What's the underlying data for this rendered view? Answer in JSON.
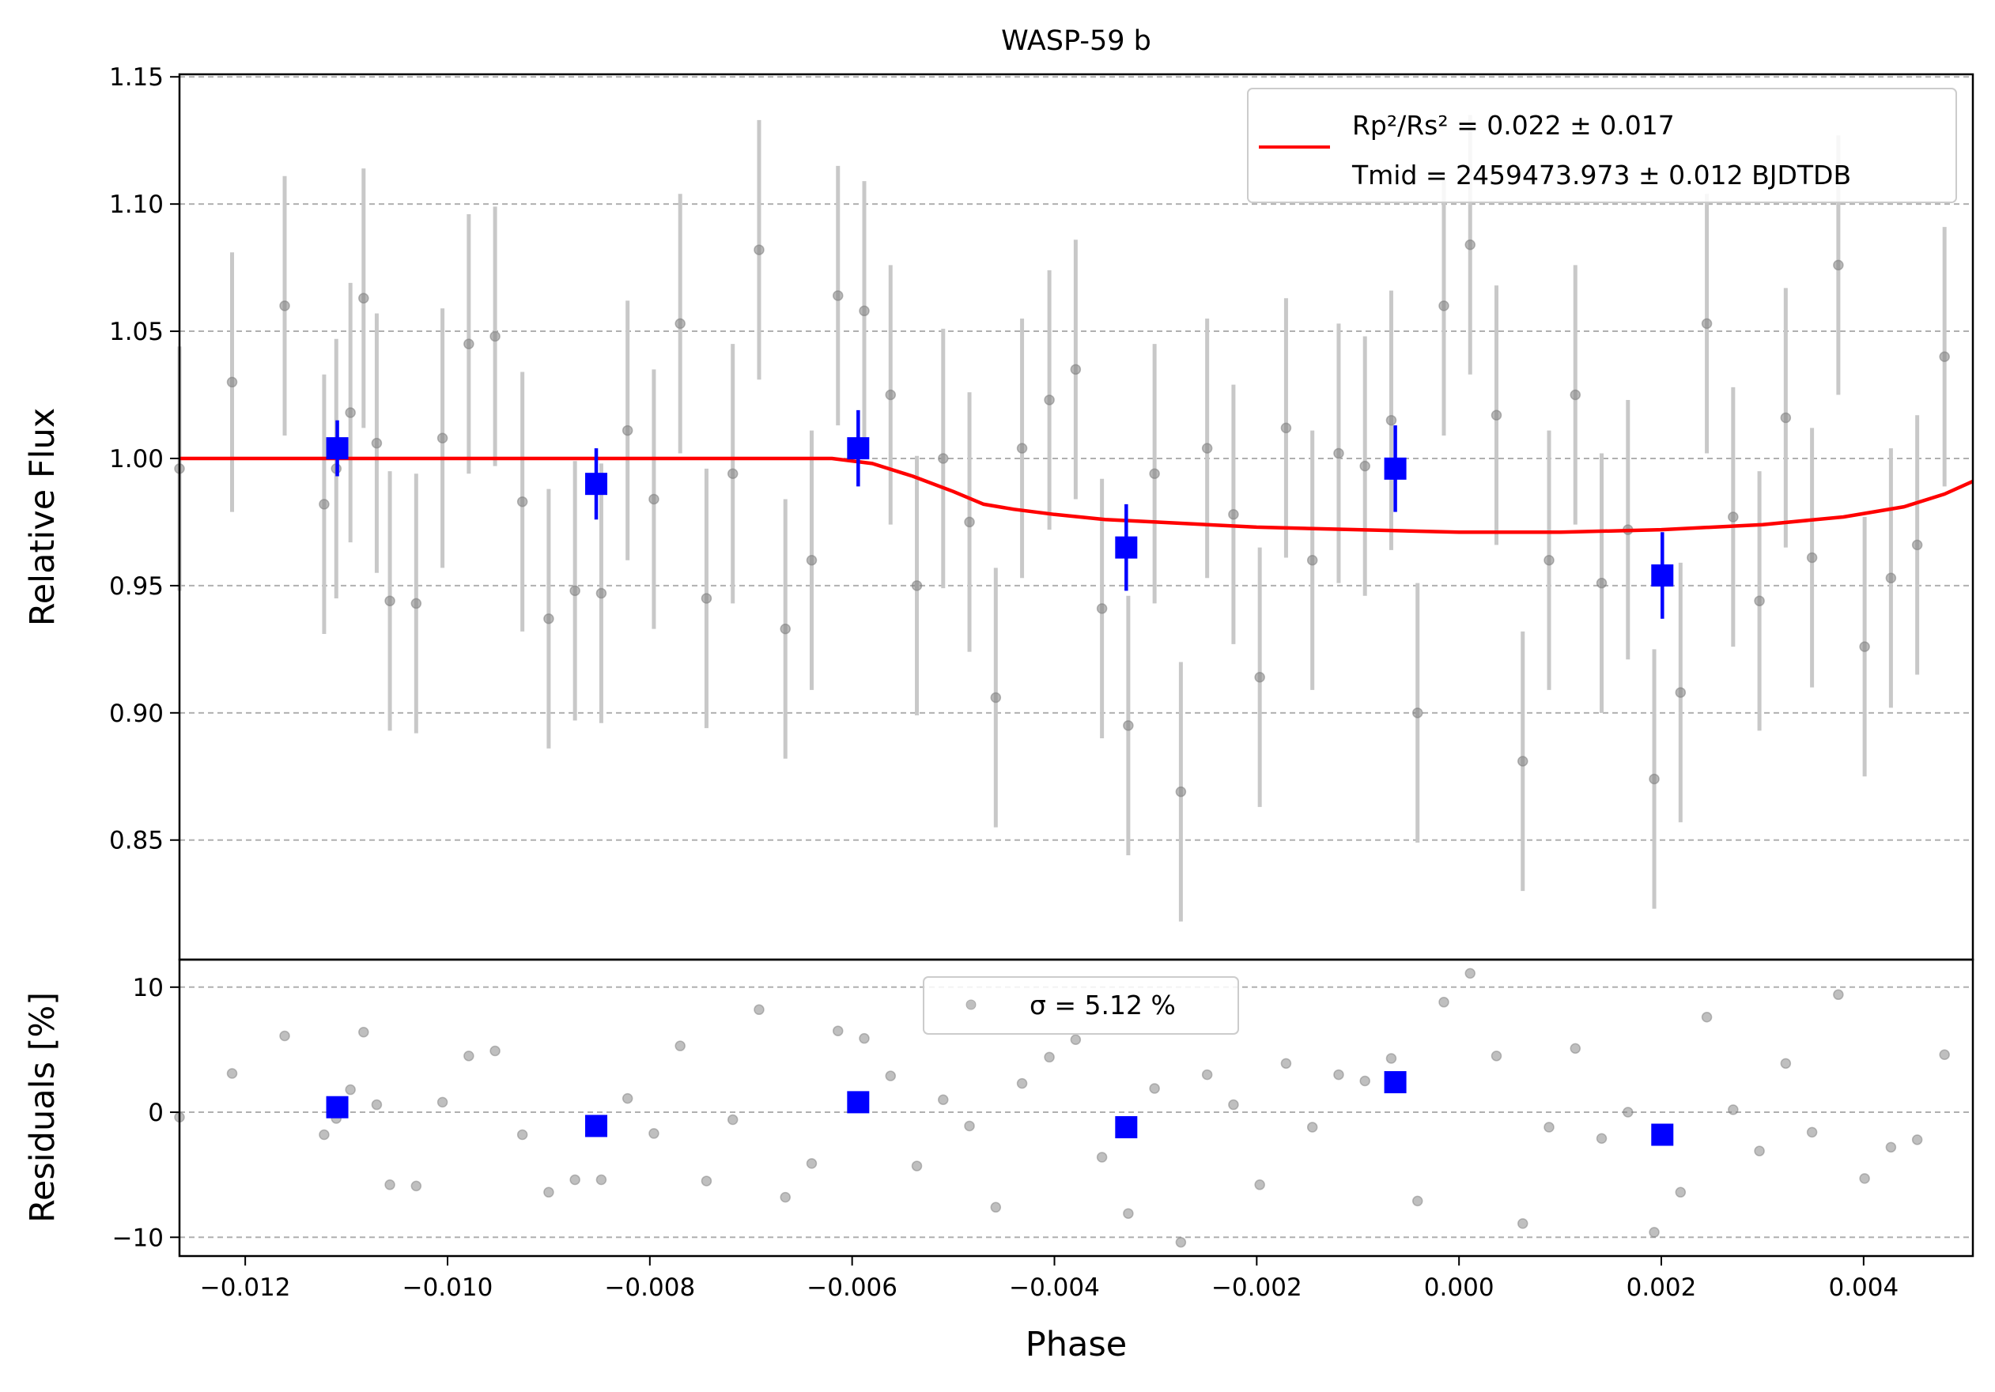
{
  "colors": {
    "raw": "#808080",
    "raw_err": "#c8c8c8",
    "binned": "#0000ff",
    "model": "#ff0000",
    "grid": "#b0b0b0"
  },
  "chart_data": {
    "type": "scatter",
    "title": "WASP-59 b",
    "xlabel": "Phase",
    "ylabel_top": "Relative Flux",
    "ylabel_bottom": "Residuals [%]",
    "xlim": [
      -0.01265,
      0.00508
    ],
    "ylim_top": [
      0.803,
      1.151
    ],
    "ylim_bottom": [
      -11.5,
      12.2
    ],
    "xticks": [
      -0.012,
      -0.01,
      -0.008,
      -0.006,
      -0.004,
      -0.002,
      0.0,
      0.002,
      0.004
    ],
    "xtick_labels": [
      "−0.012",
      "−0.010",
      "−0.008",
      "−0.006",
      "−0.004",
      "−0.002",
      "0.000",
      "0.002",
      "0.004"
    ],
    "yticks_top": [
      0.85,
      0.9,
      0.95,
      1.0,
      1.05,
      1.1,
      1.15
    ],
    "ytick_labels_top": [
      "0.85",
      "0.90",
      "0.95",
      "1.00",
      "1.05",
      "1.10",
      "1.15"
    ],
    "yticks_bottom": [
      -10,
      0,
      10
    ],
    "ytick_labels_bottom": [
      "−10",
      "0",
      "10"
    ],
    "grid": true,
    "legend_top": {
      "placement": "top-right",
      "line1": "Rp²/Rs² = 0.022 ± 0.017",
      "line2": "Tmid = 2459473.973 ± 0.012 BJDTDB"
    },
    "legend_bottom": {
      "placement": "top-center",
      "label": "σ = 5.12 %"
    },
    "raw_points": [
      {
        "x": -0.01265,
        "y": 0.996,
        "err": 0.048,
        "res": -0.4
      },
      {
        "x": -0.01213,
        "y": 1.03,
        "err": 0.051,
        "res": 3.1
      },
      {
        "x": -0.01161,
        "y": 1.06,
        "err": 0.051,
        "res": 6.1
      },
      {
        "x": -0.01122,
        "y": 0.982,
        "err": 0.051,
        "res": -1.8
      },
      {
        "x": -0.0111,
        "y": 0.996,
        "err": 0.051,
        "res": -0.5
      },
      {
        "x": -0.01096,
        "y": 1.018,
        "err": 0.051,
        "res": 1.8
      },
      {
        "x": -0.01083,
        "y": 1.063,
        "err": 0.051,
        "res": 6.4
      },
      {
        "x": -0.0107,
        "y": 1.006,
        "err": 0.051,
        "res": 0.6
      },
      {
        "x": -0.01057,
        "y": 0.944,
        "err": 0.051,
        "res": -5.8
      },
      {
        "x": -0.01031,
        "y": 0.943,
        "err": 0.051,
        "res": -5.9
      },
      {
        "x": -0.01005,
        "y": 1.008,
        "err": 0.051,
        "res": 0.8
      },
      {
        "x": -0.00979,
        "y": 1.045,
        "err": 0.051,
        "res": 4.5
      },
      {
        "x": -0.00953,
        "y": 1.048,
        "err": 0.051,
        "res": 4.9
      },
      {
        "x": -0.00926,
        "y": 0.983,
        "err": 0.051,
        "res": -1.8
      },
      {
        "x": -0.009,
        "y": 0.937,
        "err": 0.051,
        "res": -6.4
      },
      {
        "x": -0.00874,
        "y": 0.948,
        "err": 0.051,
        "res": -5.4
      },
      {
        "x": -0.00848,
        "y": 0.947,
        "err": 0.051,
        "res": -5.4
      },
      {
        "x": -0.00822,
        "y": 1.011,
        "err": 0.051,
        "res": 1.1
      },
      {
        "x": -0.00796,
        "y": 0.984,
        "err": 0.051,
        "res": -1.7
      },
      {
        "x": -0.0077,
        "y": 1.053,
        "err": 0.051,
        "res": 5.3
      },
      {
        "x": -0.00744,
        "y": 0.945,
        "err": 0.051,
        "res": -5.5
      },
      {
        "x": -0.00718,
        "y": 0.994,
        "err": 0.051,
        "res": -0.6
      },
      {
        "x": -0.00692,
        "y": 1.082,
        "err": 0.051,
        "res": 8.2
      },
      {
        "x": -0.00666,
        "y": 0.933,
        "err": 0.051,
        "res": -6.8
      },
      {
        "x": -0.0064,
        "y": 0.96,
        "err": 0.051,
        "res": -4.1
      },
      {
        "x": -0.00614,
        "y": 1.064,
        "err": 0.051,
        "res": 6.5
      },
      {
        "x": -0.00588,
        "y": 1.058,
        "err": 0.051,
        "res": 5.9
      },
      {
        "x": -0.00562,
        "y": 1.025,
        "err": 0.051,
        "res": 2.9
      },
      {
        "x": -0.00536,
        "y": 0.95,
        "err": 0.051,
        "res": -4.3
      },
      {
        "x": -0.0051,
        "y": 1.0,
        "err": 0.051,
        "res": 1.0
      },
      {
        "x": -0.00484,
        "y": 0.975,
        "err": 0.051,
        "res": -1.1
      },
      {
        "x": -0.00458,
        "y": 0.906,
        "err": 0.051,
        "res": -7.6
      },
      {
        "x": -0.00432,
        "y": 1.004,
        "err": 0.051,
        "res": 2.3
      },
      {
        "x": -0.00405,
        "y": 1.023,
        "err": 0.051,
        "res": 4.4
      },
      {
        "x": -0.00379,
        "y": 1.035,
        "err": 0.051,
        "res": 5.8
      },
      {
        "x": -0.00353,
        "y": 0.941,
        "err": 0.051,
        "res": -3.6
      },
      {
        "x": -0.00327,
        "y": 0.895,
        "err": 0.051,
        "res": -8.1
      },
      {
        "x": -0.00301,
        "y": 0.994,
        "err": 0.051,
        "res": 1.9
      },
      {
        "x": -0.00275,
        "y": 0.869,
        "err": 0.051,
        "res": -10.4
      },
      {
        "x": -0.00249,
        "y": 1.004,
        "err": 0.051,
        "res": 3.0
      },
      {
        "x": -0.00223,
        "y": 0.978,
        "err": 0.051,
        "res": 0.6
      },
      {
        "x": -0.00197,
        "y": 0.914,
        "err": 0.051,
        "res": -5.8
      },
      {
        "x": -0.00171,
        "y": 1.012,
        "err": 0.051,
        "res": 3.9
      },
      {
        "x": -0.00145,
        "y": 0.96,
        "err": 0.051,
        "res": -1.2
      },
      {
        "x": -0.00119,
        "y": 1.002,
        "err": 0.051,
        "res": 3.0
      },
      {
        "x": -0.00093,
        "y": 0.997,
        "err": 0.051,
        "res": 2.5
      },
      {
        "x": -0.00067,
        "y": 1.015,
        "err": 0.051,
        "res": 4.3
      },
      {
        "x": -0.00041,
        "y": 0.9,
        "err": 0.051,
        "res": -7.1
      },
      {
        "x": -0.00015,
        "y": 1.06,
        "err": 0.051,
        "res": 8.8
      },
      {
        "x": 0.00011,
        "y": 1.084,
        "err": 0.051,
        "res": 11.1
      },
      {
        "x": 0.00037,
        "y": 1.017,
        "err": 0.051,
        "res": 4.5
      },
      {
        "x": 0.00063,
        "y": 0.881,
        "err": 0.051,
        "res": -8.9
      },
      {
        "x": 0.00089,
        "y": 0.96,
        "err": 0.051,
        "res": -1.2
      },
      {
        "x": 0.00115,
        "y": 1.025,
        "err": 0.051,
        "res": 5.1
      },
      {
        "x": 0.00141,
        "y": 0.951,
        "err": 0.051,
        "res": -2.1
      },
      {
        "x": 0.00167,
        "y": 0.972,
        "err": 0.051,
        "res": 0.0
      },
      {
        "x": 0.00193,
        "y": 0.874,
        "err": 0.051,
        "res": -9.6
      },
      {
        "x": 0.00219,
        "y": 0.908,
        "err": 0.051,
        "res": -6.4
      },
      {
        "x": 0.00245,
        "y": 1.053,
        "err": 0.051,
        "res": 7.6
      },
      {
        "x": 0.00271,
        "y": 0.977,
        "err": 0.051,
        "res": 0.2
      },
      {
        "x": 0.00297,
        "y": 0.944,
        "err": 0.051,
        "res": -3.1
      },
      {
        "x": 0.00323,
        "y": 1.016,
        "err": 0.051,
        "res": 3.9
      },
      {
        "x": 0.00349,
        "y": 0.961,
        "err": 0.051,
        "res": -1.6
      },
      {
        "x": 0.00375,
        "y": 1.076,
        "err": 0.051,
        "res": 9.4
      },
      {
        "x": 0.00401,
        "y": 0.926,
        "err": 0.051,
        "res": -5.3
      },
      {
        "x": 0.00427,
        "y": 0.953,
        "err": 0.051,
        "res": -2.8
      },
      {
        "x": 0.00453,
        "y": 0.966,
        "err": 0.051,
        "res": -2.2
      },
      {
        "x": 0.0048,
        "y": 1.04,
        "err": 0.051,
        "res": 4.6
      }
    ],
    "binned_points": [
      {
        "x": -0.01109,
        "y": 1.004,
        "err": 0.011,
        "res": 0.4
      },
      {
        "x": -0.00853,
        "y": 0.99,
        "err": 0.014,
        "res": -1.1
      },
      {
        "x": -0.00594,
        "y": 1.004,
        "err": 0.015,
        "res": 0.8
      },
      {
        "x": -0.00329,
        "y": 0.965,
        "err": 0.017,
        "res": -1.2
      },
      {
        "x": -0.00063,
        "y": 0.996,
        "err": 0.017,
        "res": 2.4
      },
      {
        "x": 0.00201,
        "y": 0.954,
        "err": 0.017,
        "res": -1.8
      }
    ],
    "model": {
      "x": [
        -0.01265,
        -0.0062,
        -0.0058,
        -0.0054,
        -0.005,
        -0.0047,
        -0.0044,
        -0.004,
        -0.0035,
        -0.003,
        -0.002,
        -0.001,
        0.0,
        0.001,
        0.002,
        0.003,
        0.0038,
        0.0044,
        0.0048,
        0.00508
      ],
      "y": [
        1.0,
        1.0,
        0.998,
        0.993,
        0.987,
        0.982,
        0.98,
        0.978,
        0.976,
        0.975,
        0.973,
        0.972,
        0.971,
        0.971,
        0.972,
        0.974,
        0.977,
        0.981,
        0.986,
        0.991
      ]
    }
  }
}
